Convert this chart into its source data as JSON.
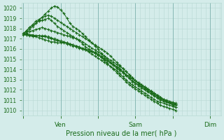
{
  "xlabel": "Pression niveau de la mer( hPa )",
  "ylim": [
    1009.5,
    1020.5
  ],
  "yticks": [
    1010,
    1011,
    1012,
    1013,
    1014,
    1015,
    1016,
    1017,
    1018,
    1019,
    1020
  ],
  "bg_color": "#d4ecea",
  "grid_color_minor": "#b8d8d4",
  "grid_color_major": "#88b8b4",
  "line_color": "#1a6b1a",
  "marker": "+",
  "markersize": 3.5,
  "linewidth": 0.7,
  "xtick_labels": [
    "",
    "Ven",
    "",
    "Sam",
    "",
    "Dim"
  ],
  "xtick_positions": [
    0,
    24,
    48,
    72,
    96,
    120
  ],
  "xlim": [
    -1,
    127
  ],
  "series": [
    [
      1017.5,
      1017.7,
      1017.9,
      1018.2,
      1018.5,
      1018.8,
      1019.1,
      1019.4,
      1019.7,
      1020.0,
      1020.2,
      1020.1,
      1019.8,
      1019.5,
      1019.0,
      1018.5,
      1018.2,
      1018.0,
      1017.8,
      1017.5,
      1017.2,
      1016.9,
      1016.6,
      1016.3,
      1016.0,
      1015.6,
      1015.3,
      1015.0,
      1014.7,
      1014.4,
      1014.1,
      1013.9,
      1013.7,
      1013.5,
      1013.3,
      1013.1,
      1012.9,
      1012.7,
      1012.5,
      1012.3,
      1012.1,
      1011.9,
      1011.7,
      1011.5,
      1011.3,
      1011.1,
      1010.9,
      1010.7,
      1010.5,
      1010.3
    ],
    [
      1017.5,
      1017.8,
      1018.1,
      1018.4,
      1018.7,
      1018.9,
      1019.1,
      1019.2,
      1019.3,
      1019.2,
      1019.0,
      1018.8,
      1018.6,
      1018.4,
      1018.2,
      1018.0,
      1017.8,
      1017.6,
      1017.4,
      1017.2,
      1017.0,
      1016.8,
      1016.6,
      1016.4,
      1016.2,
      1016.0,
      1015.8,
      1015.6,
      1015.3,
      1015.0,
      1014.7,
      1014.4,
      1014.1,
      1013.8,
      1013.5,
      1013.2,
      1012.9,
      1012.7,
      1012.5,
      1012.3,
      1012.1,
      1011.9,
      1011.7,
      1011.5,
      1011.3,
      1011.1,
      1011.0,
      1010.9,
      1010.8,
      1010.7
    ],
    [
      1017.5,
      1017.8,
      1018.1,
      1018.3,
      1018.5,
      1018.7,
      1018.8,
      1018.9,
      1019.0,
      1018.8,
      1018.5,
      1018.2,
      1018.0,
      1017.8,
      1017.6,
      1017.4,
      1017.2,
      1017.0,
      1016.8,
      1016.5,
      1016.2,
      1016.0,
      1015.8,
      1015.6,
      1015.4,
      1015.2,
      1014.9,
      1014.6,
      1014.3,
      1014.0,
      1013.7,
      1013.4,
      1013.1,
      1012.8,
      1012.5,
      1012.3,
      1012.1,
      1011.9,
      1011.7,
      1011.5,
      1011.3,
      1011.1,
      1010.9,
      1010.7,
      1010.5,
      1010.4,
      1010.3,
      1010.2,
      1010.1,
      1010.0
    ],
    [
      1017.5,
      1017.6,
      1017.7,
      1017.8,
      1017.9,
      1018.0,
      1018.1,
      1018.0,
      1017.9,
      1017.8,
      1017.7,
      1017.6,
      1017.5,
      1017.4,
      1017.3,
      1017.2,
      1017.1,
      1017.0,
      1016.9,
      1016.7,
      1016.5,
      1016.3,
      1016.1,
      1015.9,
      1015.7,
      1015.5,
      1015.3,
      1015.1,
      1014.9,
      1014.7,
      1014.5,
      1014.3,
      1014.1,
      1013.8,
      1013.5,
      1013.2,
      1012.9,
      1012.6,
      1012.4,
      1012.2,
      1012.0,
      1011.8,
      1011.6,
      1011.4,
      1011.2,
      1011.0,
      1010.9,
      1010.8,
      1010.7,
      1010.6
    ],
    [
      1017.4,
      1017.4,
      1017.4,
      1017.3,
      1017.3,
      1017.3,
      1017.3,
      1017.3,
      1017.2,
      1017.1,
      1017.0,
      1016.9,
      1016.8,
      1016.7,
      1016.6,
      1016.5,
      1016.4,
      1016.3,
      1016.2,
      1016.1,
      1016.0,
      1015.9,
      1015.8,
      1015.7,
      1015.5,
      1015.3,
      1015.1,
      1014.9,
      1014.7,
      1014.5,
      1014.3,
      1014.1,
      1013.8,
      1013.5,
      1013.2,
      1012.9,
      1012.7,
      1012.5,
      1012.3,
      1012.1,
      1011.9,
      1011.7,
      1011.5,
      1011.3,
      1011.1,
      1011.0,
      1010.9,
      1010.8,
      1010.7,
      1010.6
    ],
    [
      1017.5,
      1017.5,
      1017.4,
      1017.4,
      1017.3,
      1017.3,
      1017.2,
      1017.2,
      1017.1,
      1017.0,
      1016.9,
      1016.8,
      1016.7,
      1016.6,
      1016.5,
      1016.4,
      1016.3,
      1016.2,
      1016.1,
      1016.0,
      1015.9,
      1015.8,
      1015.7,
      1015.6,
      1015.4,
      1015.2,
      1015.0,
      1014.8,
      1014.6,
      1014.4,
      1014.2,
      1014.0,
      1013.7,
      1013.4,
      1013.1,
      1012.8,
      1012.6,
      1012.4,
      1012.2,
      1012.0,
      1011.8,
      1011.6,
      1011.4,
      1011.2,
      1011.0,
      1010.9,
      1010.8,
      1010.7,
      1010.6,
      1010.5
    ],
    [
      1017.5,
      1017.4,
      1017.3,
      1017.2,
      1017.2,
      1017.1,
      1017.0,
      1016.9,
      1016.8,
      1016.7,
      1016.7,
      1016.6,
      1016.6,
      1016.7,
      1016.6,
      1016.5,
      1016.4,
      1016.3,
      1016.2,
      1016.0,
      1015.9,
      1015.7,
      1015.5,
      1015.3,
      1015.1,
      1014.9,
      1014.7,
      1014.5,
      1014.3,
      1014.1,
      1013.9,
      1013.6,
      1013.3,
      1013.0,
      1012.7,
      1012.5,
      1012.3,
      1012.1,
      1011.9,
      1011.7,
      1011.5,
      1011.3,
      1011.1,
      1010.9,
      1010.8,
      1010.7,
      1010.6,
      1010.5,
      1010.4,
      1010.3
    ]
  ],
  "x_step": 2,
  "n_points": 50
}
